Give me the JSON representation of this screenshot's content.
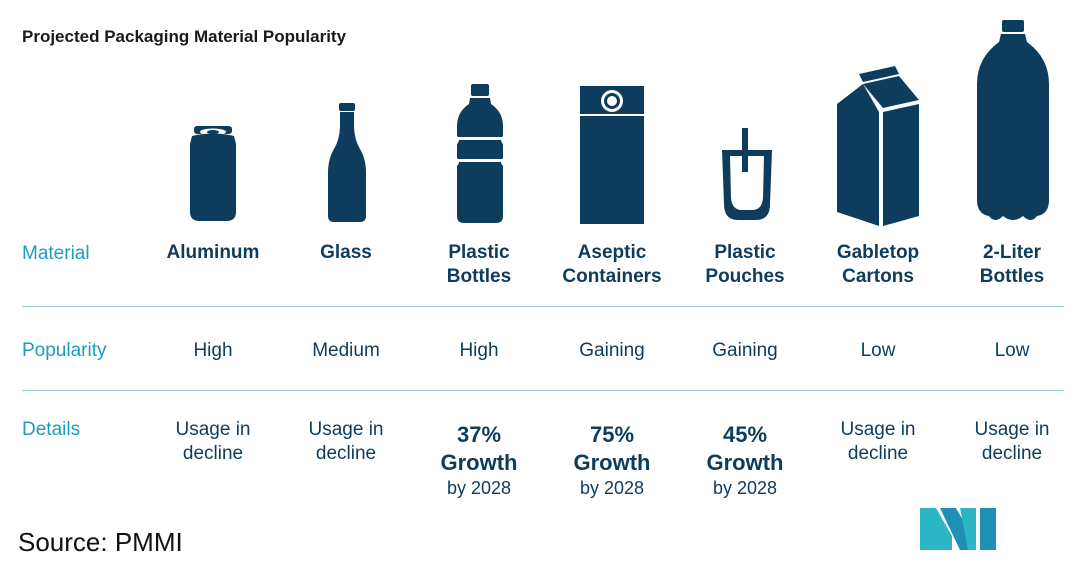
{
  "chart_data": {
    "type": "table",
    "title": "Projected Packaging Material Popularity",
    "row_labels": {
      "material": "Material",
      "popularity": "Popularity",
      "details": "Details"
    },
    "columns": [
      {
        "material_line1": "Aluminum",
        "material_line2": "",
        "icon": "soda-can-icon",
        "popularity": "High",
        "details_type": "text",
        "details_line1": "Usage in",
        "details_line2": "decline"
      },
      {
        "material_line1": "Glass",
        "material_line2": "",
        "icon": "glass-bottle-icon",
        "popularity": "Medium",
        "details_type": "text",
        "details_line1": "Usage in",
        "details_line2": "decline"
      },
      {
        "material_line1": "Plastic",
        "material_line2": "Bottles",
        "icon": "plastic-bottle-icon",
        "popularity": "High",
        "details_type": "growth",
        "growth_value": "37%",
        "growth_label": "Growth",
        "growth_year": "by 2028"
      },
      {
        "material_line1": "Aseptic",
        "material_line2": "Containers",
        "icon": "aseptic-carton-icon",
        "popularity": "Gaining",
        "details_type": "growth",
        "growth_value": "75%",
        "growth_label": "Growth",
        "growth_year": "by 2028"
      },
      {
        "material_line1": "Plastic",
        "material_line2": "Pouches",
        "icon": "pouch-icon",
        "popularity": "Gaining",
        "details_type": "growth",
        "growth_value": "45%",
        "growth_label": "Growth",
        "growth_year": "by 2028"
      },
      {
        "material_line1": "Gabletop",
        "material_line2": "Cartons",
        "icon": "gabletop-carton-icon",
        "popularity": "Low",
        "details_type": "text",
        "details_line1": "Usage in",
        "details_line2": "decline"
      },
      {
        "material_line1": "2-Liter",
        "material_line2": "Bottles",
        "icon": "two-liter-bottle-icon",
        "popularity": "Low",
        "details_type": "text",
        "details_line1": "Usage in",
        "details_line2": "decline"
      }
    ]
  },
  "source": "Source: PMMI",
  "colors": {
    "dark_navy": "#0e3c5c",
    "accent_blue": "#1a9cc4",
    "divider": "#9fc7da",
    "logo_teal": "#2bb5c5"
  }
}
